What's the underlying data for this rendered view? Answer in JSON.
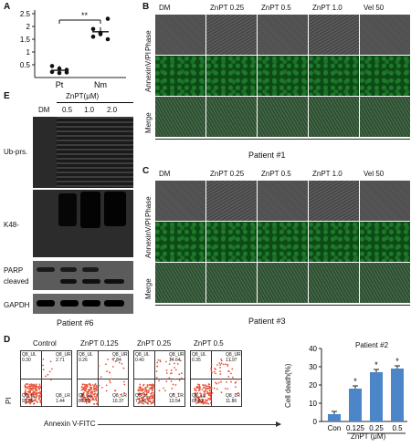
{
  "panel_letters": {
    "a": "A",
    "b": "B",
    "c": "C",
    "d": "D",
    "e": "E"
  },
  "panel_a": {
    "yticks": [
      "2.5",
      "2",
      "1.5",
      "1",
      "0.5"
    ],
    "categories": [
      "Pt",
      "Nm"
    ],
    "significance": "**"
  },
  "panel_b": {
    "columns": [
      "DM",
      "ZnPT 0.25",
      "ZnPT 0.5",
      "ZnPT 1.0",
      "Vel 50"
    ],
    "rows": [
      "Phase",
      "AnnexinV/PI",
      "Merge"
    ],
    "patient": "Patient #1"
  },
  "panel_c": {
    "columns": [
      "DM",
      "ZnPT 0.25",
      "ZnPT 0.5",
      "ZnPT 1.0",
      "Vel 50"
    ],
    "rows": [
      "Phase",
      "AnnexinV/PI",
      "Merge"
    ],
    "patient": "Patient #3"
  },
  "panel_e": {
    "header": "ZnPT(μM)",
    "lanes": [
      "DM",
      "0.5",
      "1.0",
      "2.0"
    ],
    "rows": [
      "Ub-prs.",
      "K48-",
      "PARP",
      "cleaved",
      "GAPDH"
    ],
    "patient": "Patient #6"
  },
  "panel_d": {
    "plots": [
      {
        "title": "Control",
        "ul": "Q8_UL",
        "ur": "Q8_UR",
        "ll": "Q8_LL",
        "lr": "Q8_LR",
        "v_ul": "0.30",
        "v_ur": "2.71",
        "v_ll": "95.95",
        "v_lr": "1.44"
      },
      {
        "title": "ZnPT 0.125",
        "ul": "Q8_UL",
        "ur": "Q8_UR",
        "ll": "Q8_LL",
        "lr": "Q8_LR",
        "v_ul": "0.26",
        "v_ur": "7.84",
        "v_ll": "81.53",
        "v_lr": "10.37"
      },
      {
        "title": "ZnPT 0.25",
        "ul": "Q8_UL",
        "ur": "Q8_UR",
        "ll": "Q8_LL",
        "lr": "Q8_LR",
        "v_ul": "0.40",
        "v_ur": "14.64",
        "v_ll": "71.42",
        "v_lr": "13.54"
      },
      {
        "title": "ZnPT 0.5",
        "ul": "Q8_UL",
        "ur": "Q8_UR",
        "ll": "Q8_LL",
        "lr": "Q8_LR",
        "v_ul": "0.35",
        "v_ur": "17.97",
        "v_ll": "69.82",
        "v_lr": "11.86"
      }
    ],
    "y_axis": "PI",
    "x_axis": "Annexin V-FITC",
    "bar_title": "Patient #2",
    "bar_ylabel": "Cell death(%)",
    "bar_xlabel": "ZnPT  (μM)",
    "bar_yticks": [
      "40",
      "30",
      "20",
      "10",
      "0"
    ],
    "bar_color": "#4d86c8"
  },
  "chart_data": [
    {
      "type": "scatter",
      "categories": [
        "Pt",
        "Nm"
      ],
      "series": [
        {
          "values": [
            [
              0.22,
              0.18,
              0.3,
              0.45,
              0.35,
              0.2
            ],
            [
              1.9,
              1.7,
              1.5,
              1.6,
              1.75,
              2.3
            ]
          ]
        }
      ],
      "ylim": [
        0,
        2.5
      ]
    },
    {
      "type": "bar",
      "categories": [
        "Con",
        "0.125",
        "0.25",
        "0.5"
      ],
      "values": [
        4,
        18,
        27,
        29
      ],
      "ylim": [
        0,
        40
      ],
      "xlabel": "ZnPT  (μM)",
      "ylabel": "Cell death(%)",
      "title": "Patient #2",
      "annotations": [
        "",
        "*",
        "*",
        "*"
      ]
    }
  ]
}
